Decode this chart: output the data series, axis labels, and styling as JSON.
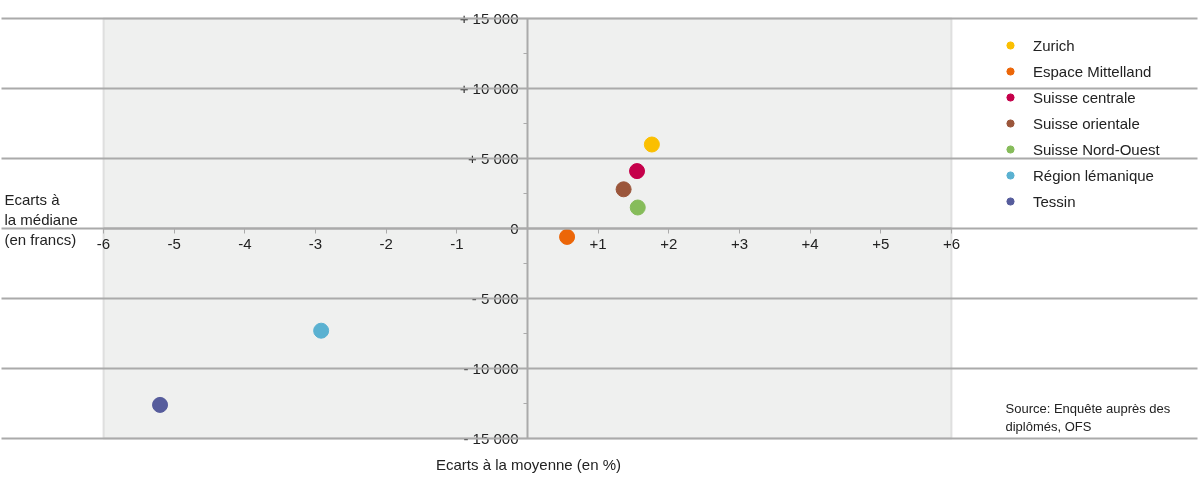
{
  "chart_data": {
    "type": "scatter",
    "xlabel": "Ecarts à la moyenne (en %)",
    "ylabel": "Ecarts à\nla médiane\n(en francs)",
    "series": [
      {
        "name": "Zurich",
        "color": "#fbbf00",
        "x": [
          1.76
        ],
        "values": [
          6000
        ]
      },
      {
        "name": "Espace Mittelland",
        "color": "#ec6608",
        "x": [
          0.56
        ],
        "values": [
          -600
        ]
      },
      {
        "name": "Suisse centrale",
        "color": "#c5004a",
        "x": [
          1.55
        ],
        "values": [
          4100
        ]
      },
      {
        "name": "Suisse orientale",
        "color": "#9b563b",
        "x": [
          1.36
        ],
        "values": [
          2800
        ]
      },
      {
        "name": "Suisse Nord-Ouest",
        "color": "#86bc5a",
        "x": [
          1.56
        ],
        "values": [
          1500
        ]
      },
      {
        "name": "Région lémanique",
        "color": "#5ab1d1",
        "x": [
          -2.92
        ],
        "values": [
          -7300
        ]
      },
      {
        "name": "Tessin",
        "color": "#565c9c",
        "x": [
          -5.2
        ],
        "values": [
          -12600
        ]
      }
    ],
    "xlim": [
      -6,
      6
    ],
    "xticks": [
      -6,
      -5,
      -4,
      -3,
      -2,
      -1,
      {
        "value": 1,
        "label": "+1"
      },
      {
        "value": 2,
        "label": "+2"
      },
      {
        "value": 3,
        "label": "+3"
      },
      {
        "value": 4,
        "label": "+4"
      },
      {
        "value": 5,
        "label": "+5"
      },
      {
        "value": 6,
        "label": "+6"
      }
    ],
    "ylim": [
      -15000,
      15000
    ],
    "yticks": [
      {
        "value": -15000,
        "label": "- 15 000"
      },
      {
        "value": -10000,
        "label": "- 10 000"
      },
      {
        "value": -5000,
        "label": "- 5 000"
      },
      {
        "value": 0,
        "label": "0"
      },
      {
        "value": 5000,
        "label": "+ 5 000"
      },
      {
        "value": 10000,
        "label": "+ 10 000"
      },
      {
        "value": 15000,
        "label": "+ 15 000"
      }
    ],
    "grid": "y",
    "legend": "top right",
    "marker": "circle",
    "annotations": [
      "Source: Enquête auprès des\ndiplômés, OFS"
    ]
  }
}
